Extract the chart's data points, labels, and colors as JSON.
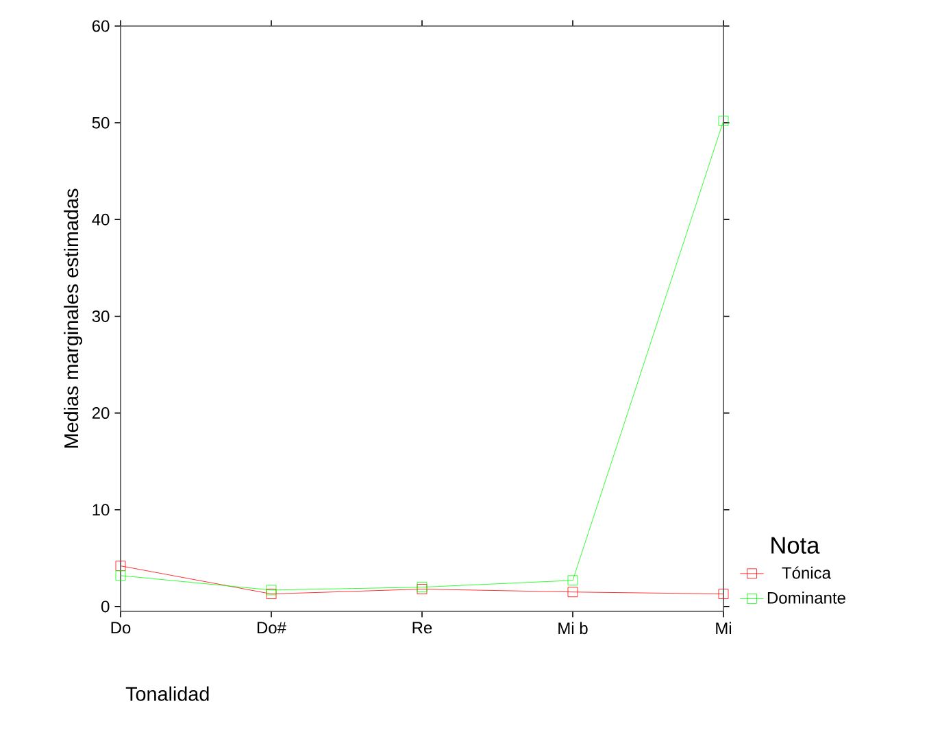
{
  "chart_data": {
    "type": "line",
    "xlabel": "Tonalidad",
    "ylabel": "Medias marginales estimadas",
    "legend_title": "Nota",
    "categories": [
      "Do",
      "Do#",
      "Re",
      "Mi b",
      "Mi"
    ],
    "series": [
      {
        "name": "Tónica",
        "color": "#ff0000",
        "values": [
          4.2,
          1.3,
          1.8,
          1.5,
          1.3
        ]
      },
      {
        "name": "Dominante",
        "color": "#00ff00",
        "values": [
          3.2,
          1.7,
          2.0,
          2.7,
          50.2
        ]
      }
    ],
    "ylim": [
      -0.5,
      60
    ],
    "yticks": [
      0,
      10,
      20,
      30,
      40,
      50,
      60
    ],
    "grid": false,
    "legend": "right",
    "marker": "square",
    "line_style": "solid"
  }
}
